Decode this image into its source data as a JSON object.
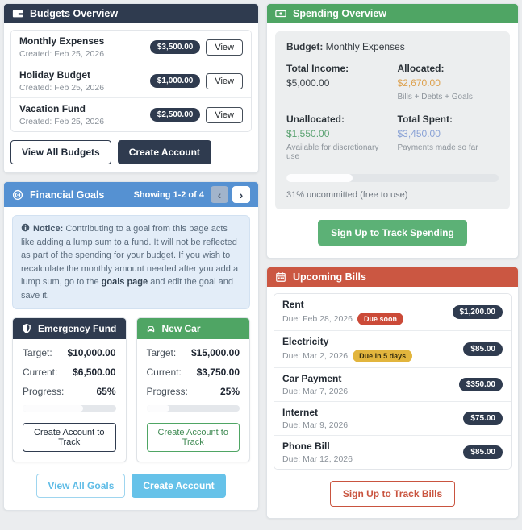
{
  "colors": {
    "dark_navy": "#2f3b4f",
    "goals_blue": "#5591d2",
    "light_blue": "#66c2e9",
    "spending_green": "#4fa564",
    "button_green": "#5cb176",
    "bills_red": "#cb5742",
    "danger_badge": "#cb4a38",
    "warning_badge": "#e2b53d",
    "allocated_orange": "#dda14e",
    "unallocated_green": "#5aa271",
    "total_spent_blue": "#8ba3d6"
  },
  "budgets_overview": {
    "title": "Budgets Overview",
    "items": [
      {
        "name": "Monthly Expenses",
        "created": "Created: Feb 25, 2026",
        "amount": "$3,500.00",
        "view_label": "View"
      },
      {
        "name": "Holiday Budget",
        "created": "Created: Feb 25, 2026",
        "amount": "$1,000.00",
        "view_label": "View"
      },
      {
        "name": "Vacation Fund",
        "created": "Created: Feb 25, 2026",
        "amount": "$2,500.00",
        "view_label": "View"
      }
    ],
    "view_all_label": "View All Budgets",
    "create_account_label": "Create Account"
  },
  "financial_goals": {
    "title": "Financial Goals",
    "showing": "Showing 1-2 of 4",
    "prev_icon": "‹",
    "next_icon": "›",
    "notice_label": "Notice:",
    "notice_text_1": " Contributing to a goal from this page acts like adding a lump sum to a fund. It will not be reflected as part of the spending for your budget. If you wish to recalculate the monthly amount needed after you add a lump sum, go to the ",
    "notice_link": "goals page",
    "notice_text_2": " and edit the goal and save it.",
    "goals": [
      {
        "name": "Emergency Fund",
        "target_label": "Target:",
        "target": "$10,000.00",
        "current_label": "Current:",
        "current": "$6,500.00",
        "progress_label": "Progress:",
        "progress_text": "65%",
        "progress_pct": 65,
        "button_label": "Create Account to Track"
      },
      {
        "name": "New Car",
        "target_label": "Target:",
        "target": "$15,000.00",
        "current_label": "Current:",
        "current": "$3,750.00",
        "progress_label": "Progress:",
        "progress_text": "25%",
        "progress_pct": 25,
        "button_label": "Create Account to Track"
      }
    ],
    "view_all_label": "View All Goals",
    "create_account_label": "Create Account"
  },
  "spending_overview": {
    "title": "Spending Overview",
    "budget_label": "Budget:",
    "budget_value": "Monthly Expenses",
    "stats": [
      {
        "label": "Total Income:",
        "value": "$5,000.00",
        "sub": ""
      },
      {
        "label": "Allocated:",
        "value": "$2,670.00",
        "sub": "Bills + Debts + Goals"
      },
      {
        "label": "Unallocated:",
        "value": "$1,550.00",
        "sub": "Available for discretionary use"
      },
      {
        "label": "Total Spent:",
        "value": "$3,450.00",
        "sub": "Payments made so far"
      }
    ],
    "progress_pct": 31,
    "progress_caption": "31% uncommitted (free to use)",
    "signup_label": "Sign Up to Track Spending"
  },
  "upcoming_bills": {
    "title": "Upcoming Bills",
    "bills": [
      {
        "name": "Rent",
        "due": "Due: Feb 28, 2026",
        "badge": "Due soon",
        "amount": "$1,200.00"
      },
      {
        "name": "Electricity",
        "due": "Due: Mar 2, 2026",
        "badge": "Due in 5 days",
        "amount": "$85.00"
      },
      {
        "name": "Car Payment",
        "due": "Due: Mar 7, 2026",
        "badge": "",
        "amount": "$350.00"
      },
      {
        "name": "Internet",
        "due": "Due: Mar 9, 2026",
        "badge": "",
        "amount": "$75.00"
      },
      {
        "name": "Phone Bill",
        "due": "Due: Mar 12, 2026",
        "badge": "",
        "amount": "$85.00"
      }
    ],
    "signup_label": "Sign Up to Track Bills"
  }
}
